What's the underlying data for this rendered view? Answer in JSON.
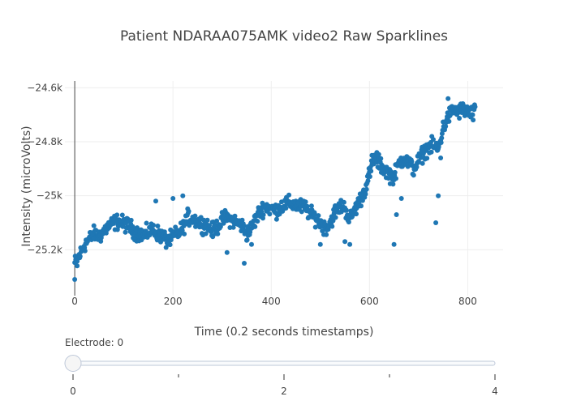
{
  "chart_data": {
    "type": "scatter",
    "title": "Patient NDARAA075AMK video2 Raw Sparklines",
    "xlabel": "Time (0.2 seconds timestamps)",
    "ylabel": "Intensity (microVolts)",
    "xlim": [
      -20,
      872
    ],
    "ylim": [
      -25370,
      -24575
    ],
    "x_ticks": [
      0,
      200,
      400,
      600,
      800
    ],
    "x_tick_labels": [
      "0",
      "200",
      "400",
      "600",
      "800"
    ],
    "y_ticks": [
      -25200,
      -25000,
      -24800,
      -24600
    ],
    "y_tick_labels": [
      "−25.2k",
      "−25k",
      "−24.8k",
      "−24.6k"
    ],
    "grid": true,
    "legend": "none",
    "color": "#1f77b4",
    "anchors": [
      [
        0,
        -25250
      ],
      [
        10,
        -25220
      ],
      [
        20,
        -25180
      ],
      [
        30,
        -25160
      ],
      [
        40,
        -25140
      ],
      [
        50,
        -25150
      ],
      [
        60,
        -25130
      ],
      [
        70,
        -25110
      ],
      [
        80,
        -25100
      ],
      [
        90,
        -25095
      ],
      [
        100,
        -25105
      ],
      [
        110,
        -25110
      ],
      [
        120,
        -25130
      ],
      [
        130,
        -25140
      ],
      [
        140,
        -25145
      ],
      [
        150,
        -25135
      ],
      [
        160,
        -25125
      ],
      [
        170,
        -25140
      ],
      [
        180,
        -25155
      ],
      [
        190,
        -25170
      ],
      [
        200,
        -25150
      ],
      [
        210,
        -25140
      ],
      [
        220,
        -25120
      ],
      [
        230,
        -25080
      ],
      [
        240,
        -25085
      ],
      [
        250,
        -25095
      ],
      [
        260,
        -25105
      ],
      [
        270,
        -25110
      ],
      [
        280,
        -25130
      ],
      [
        290,
        -25115
      ],
      [
        300,
        -25090
      ],
      [
        310,
        -25080
      ],
      [
        320,
        -25090
      ],
      [
        330,
        -25100
      ],
      [
        340,
        -25110
      ],
      [
        350,
        -25140
      ],
      [
        360,
        -25120
      ],
      [
        370,
        -25080
      ],
      [
        380,
        -25050
      ],
      [
        390,
        -25040
      ],
      [
        400,
        -25050
      ],
      [
        410,
        -25055
      ],
      [
        420,
        -25040
      ],
      [
        430,
        -25030
      ],
      [
        440,
        -25030
      ],
      [
        450,
        -25035
      ],
      [
        460,
        -25040
      ],
      [
        470,
        -25045
      ],
      [
        480,
        -25070
      ],
      [
        490,
        -25080
      ],
      [
        500,
        -25100
      ],
      [
        510,
        -25120
      ],
      [
        520,
        -25100
      ],
      [
        530,
        -25060
      ],
      [
        540,
        -25040
      ],
      [
        550,
        -25045
      ],
      [
        560,
        -25090
      ],
      [
        570,
        -25050
      ],
      [
        580,
        -25020
      ],
      [
        590,
        -24980
      ],
      [
        600,
        -24920
      ],
      [
        610,
        -24860
      ],
      [
        620,
        -24880
      ],
      [
        630,
        -24900
      ],
      [
        640,
        -24920
      ],
      [
        650,
        -24930
      ],
      [
        660,
        -24880
      ],
      [
        670,
        -24860
      ],
      [
        680,
        -24880
      ],
      [
        690,
        -24900
      ],
      [
        700,
        -24870
      ],
      [
        710,
        -24840
      ],
      [
        720,
        -24820
      ],
      [
        730,
        -24815
      ],
      [
        740,
        -24830
      ],
      [
        750,
        -24750
      ],
      [
        760,
        -24710
      ],
      [
        770,
        -24680
      ],
      [
        780,
        -24690
      ],
      [
        790,
        -24680
      ],
      [
        800,
        -24690
      ],
      [
        810,
        -24700
      ],
      [
        815,
        -24690
      ]
    ],
    "outliers": [
      [
        0,
        -25310
      ],
      [
        5,
        -25260
      ],
      [
        165,
        -25020
      ],
      [
        200,
        -25010
      ],
      [
        220,
        -25000
      ],
      [
        310,
        -25210
      ],
      [
        345,
        -25250
      ],
      [
        360,
        -25180
      ],
      [
        500,
        -25180
      ],
      [
        550,
        -25170
      ],
      [
        560,
        -25180
      ],
      [
        605,
        -24850
      ],
      [
        615,
        -24840
      ],
      [
        650,
        -25180
      ],
      [
        655,
        -25070
      ],
      [
        665,
        -25010
      ],
      [
        735,
        -25100
      ],
      [
        740,
        -25000
      ],
      [
        745,
        -24860
      ],
      [
        760,
        -24640
      ]
    ],
    "slider": {
      "label": "Electrode: 0",
      "value": 0,
      "min": 0,
      "max": 4,
      "tick_labels": [
        "0",
        "2",
        "4"
      ]
    }
  }
}
